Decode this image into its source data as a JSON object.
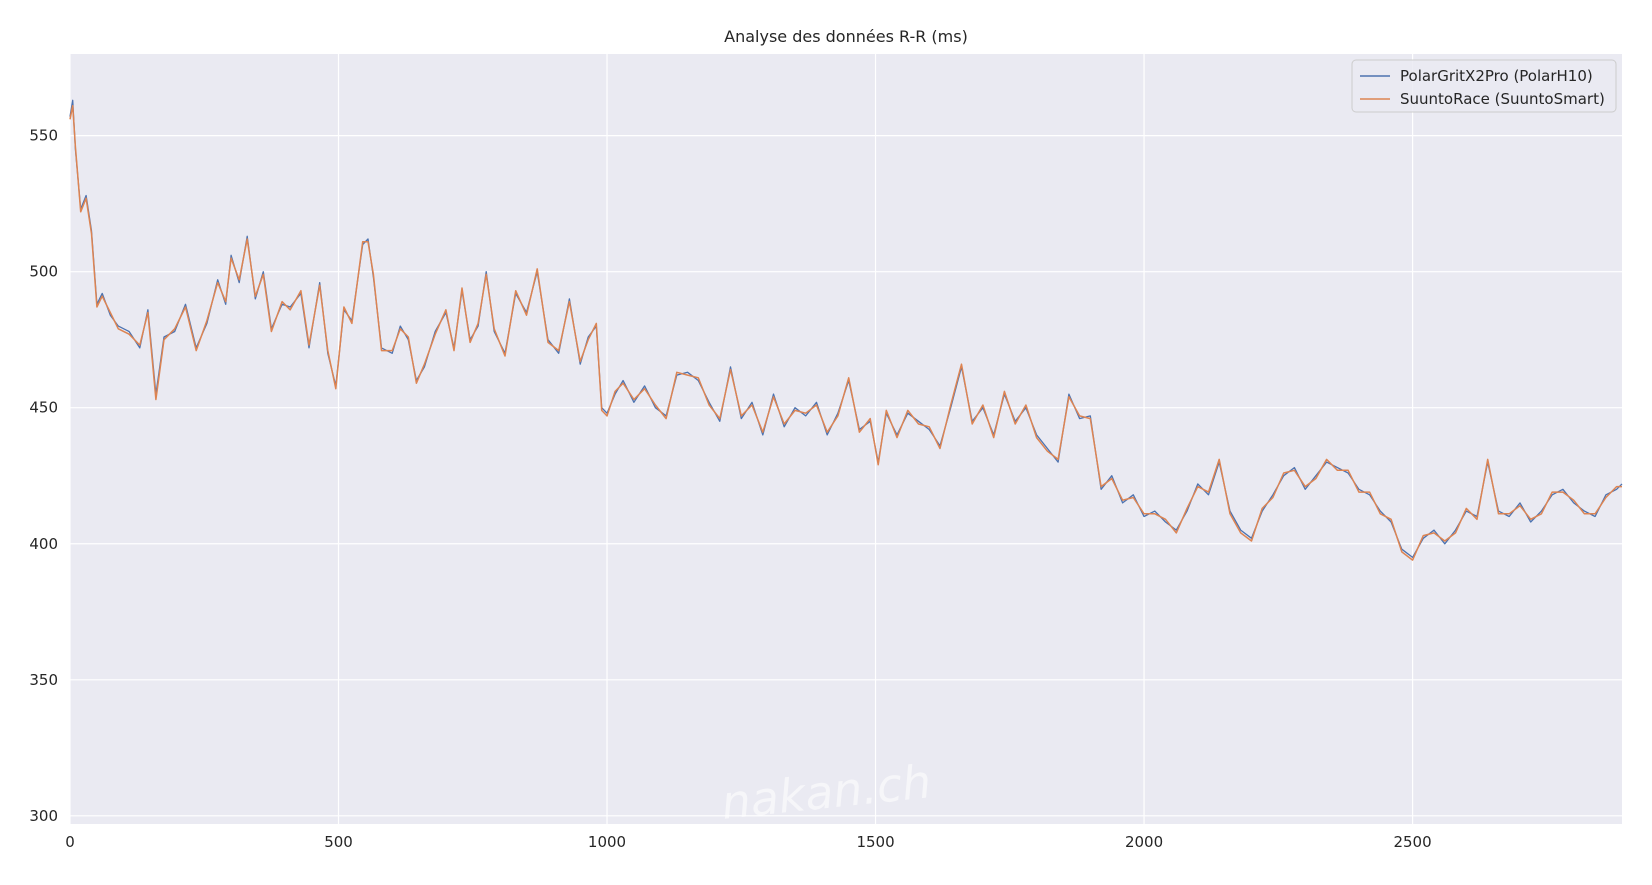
{
  "chart_data": {
    "type": "line",
    "title": "Analyse des données R-R (ms)",
    "xlabel": "",
    "ylabel": "",
    "xlim": [
      0,
      2890
    ],
    "ylim": [
      297,
      580
    ],
    "x_ticks": [
      0,
      500,
      1000,
      1500,
      2000,
      2500
    ],
    "y_ticks": [
      300,
      350,
      400,
      450,
      500,
      550
    ],
    "grid": true,
    "legend_position": "top-right",
    "watermark": "nakan.ch",
    "colors": {
      "background": "#eaeaf2",
      "grid": "#ffffff",
      "series_1": "#4c72b0",
      "series_2": "#dd8452"
    },
    "series": [
      {
        "name": "PolarGritX2Pro (PolarH10)",
        "x": [
          0,
          5,
          10,
          20,
          30,
          40,
          50,
          60,
          75,
          90,
          110,
          130,
          145,
          160,
          175,
          195,
          215,
          235,
          255,
          275,
          290,
          300,
          315,
          330,
          345,
          360,
          375,
          395,
          410,
          430,
          445,
          465,
          480,
          495,
          510,
          525,
          545,
          555,
          565,
          580,
          600,
          615,
          630,
          645,
          660,
          680,
          700,
          715,
          730,
          745,
          760,
          775,
          790,
          810,
          830,
          850,
          870,
          890,
          910,
          930,
          950,
          965,
          980,
          990,
          1000,
          1015,
          1030,
          1050,
          1070,
          1090,
          1110,
          1130,
          1150,
          1170,
          1190,
          1210,
          1230,
          1250,
          1270,
          1290,
          1310,
          1330,
          1350,
          1370,
          1390,
          1410,
          1430,
          1450,
          1470,
          1490,
          1505,
          1520,
          1540,
          1560,
          1580,
          1600,
          1620,
          1640,
          1660,
          1680,
          1700,
          1720,
          1740,
          1760,
          1780,
          1800,
          1820,
          1840,
          1860,
          1880,
          1900,
          1920,
          1940,
          1960,
          1980,
          2000,
          2020,
          2040,
          2060,
          2080,
          2100,
          2120,
          2140,
          2160,
          2180,
          2200,
          2220,
          2240,
          2260,
          2280,
          2300,
          2320,
          2340,
          2360,
          2380,
          2400,
          2420,
          2440,
          2460,
          2480,
          2500,
          2520,
          2540,
          2560,
          2580,
          2600,
          2620,
          2640,
          2660,
          2680,
          2700,
          2720,
          2740,
          2760,
          2780,
          2800,
          2820,
          2840,
          2860,
          2880,
          2890
        ],
        "values": [
          557,
          563,
          545,
          523,
          528,
          515,
          488,
          492,
          484,
          480,
          478,
          472,
          486,
          455,
          476,
          478,
          488,
          472,
          481,
          497,
          488,
          506,
          496,
          513,
          490,
          500,
          479,
          488,
          487,
          492,
          472,
          496,
          470,
          458,
          486,
          482,
          510,
          512,
          498,
          472,
          470,
          480,
          475,
          460,
          465,
          478,
          485,
          472,
          493,
          475,
          480,
          500,
          478,
          470,
          492,
          485,
          500,
          475,
          470,
          490,
          466,
          476,
          480,
          450,
          448,
          455,
          460,
          452,
          458,
          450,
          447,
          462,
          463,
          460,
          452,
          445,
          465,
          446,
          452,
          440,
          455,
          443,
          450,
          447,
          452,
          440,
          448,
          460,
          442,
          445,
          430,
          448,
          440,
          448,
          445,
          442,
          436,
          450,
          465,
          445,
          450,
          440,
          455,
          445,
          450,
          440,
          435,
          430,
          455,
          446,
          447,
          420,
          425,
          415,
          418,
          410,
          412,
          408,
          405,
          412,
          422,
          418,
          430,
          412,
          405,
          402,
          412,
          418,
          425,
          428,
          420,
          425,
          430,
          428,
          426,
          420,
          418,
          412,
          408,
          398,
          395,
          402,
          405,
          400,
          405,
          412,
          410,
          430,
          412,
          410,
          415,
          408,
          412,
          418,
          420,
          415,
          412,
          410,
          418,
          420,
          422
        ]
      },
      {
        "name": "SuuntoRace (SuuntoSmart)",
        "x": [
          0,
          5,
          10,
          20,
          30,
          40,
          50,
          60,
          75,
          90,
          110,
          130,
          145,
          160,
          175,
          195,
          215,
          235,
          255,
          275,
          290,
          300,
          315,
          330,
          345,
          360,
          375,
          395,
          410,
          430,
          445,
          465,
          480,
          495,
          510,
          525,
          545,
          555,
          565,
          580,
          600,
          615,
          630,
          645,
          660,
          680,
          700,
          715,
          730,
          745,
          760,
          775,
          790,
          810,
          830,
          850,
          870,
          890,
          910,
          930,
          950,
          965,
          980,
          990,
          1000,
          1015,
          1030,
          1050,
          1070,
          1090,
          1110,
          1130,
          1150,
          1170,
          1190,
          1210,
          1230,
          1250,
          1270,
          1290,
          1310,
          1330,
          1350,
          1370,
          1390,
          1410,
          1430,
          1450,
          1470,
          1490,
          1505,
          1520,
          1540,
          1560,
          1580,
          1600,
          1620,
          1640,
          1660,
          1680,
          1700,
          1720,
          1740,
          1760,
          1780,
          1800,
          1820,
          1840,
          1860,
          1880,
          1900,
          1920,
          1940,
          1960,
          1980,
          2000,
          2020,
          2040,
          2060,
          2080,
          2100,
          2120,
          2140,
          2160,
          2180,
          2200,
          2220,
          2240,
          2260,
          2280,
          2300,
          2320,
          2340,
          2360,
          2380,
          2400,
          2420,
          2440,
          2460,
          2480,
          2500,
          2520,
          2540,
          2560,
          2580,
          2600,
          2620,
          2640,
          2660,
          2680,
          2700,
          2720,
          2740,
          2760,
          2780,
          2800,
          2820,
          2840,
          2860,
          2880,
          2890
        ],
        "values": [
          556,
          561,
          546,
          522,
          527,
          514,
          487,
          491,
          485,
          479,
          477,
          473,
          485,
          453,
          475,
          479,
          487,
          471,
          482,
          496,
          489,
          505,
          497,
          512,
          491,
          499,
          478,
          489,
          486,
          493,
          473,
          495,
          471,
          457,
          487,
          481,
          511,
          511,
          499,
          471,
          471,
          479,
          476,
          459,
          466,
          477,
          486,
          471,
          494,
          474,
          481,
          499,
          479,
          469,
          493,
          484,
          501,
          474,
          471,
          489,
          467,
          475,
          481,
          449,
          447,
          456,
          459,
          453,
          457,
          451,
          446,
          463,
          462,
          461,
          451,
          446,
          464,
          447,
          451,
          441,
          454,
          444,
          449,
          448,
          451,
          441,
          447,
          461,
          441,
          446,
          429,
          449,
          439,
          449,
          444,
          443,
          435,
          451,
          466,
          444,
          451,
          439,
          456,
          444,
          451,
          439,
          434,
          431,
          454,
          447,
          446,
          421,
          424,
          416,
          417,
          411,
          411,
          409,
          404,
          413,
          421,
          419,
          431,
          411,
          404,
          401,
          413,
          417,
          426,
          427,
          421,
          424,
          431,
          427,
          427,
          419,
          419,
          411,
          409,
          397,
          394,
          403,
          404,
          401,
          404,
          413,
          409,
          431,
          411,
          411,
          414,
          409,
          411,
          419,
          419,
          416,
          411,
          411,
          417,
          421,
          421
        ]
      }
    ]
  }
}
